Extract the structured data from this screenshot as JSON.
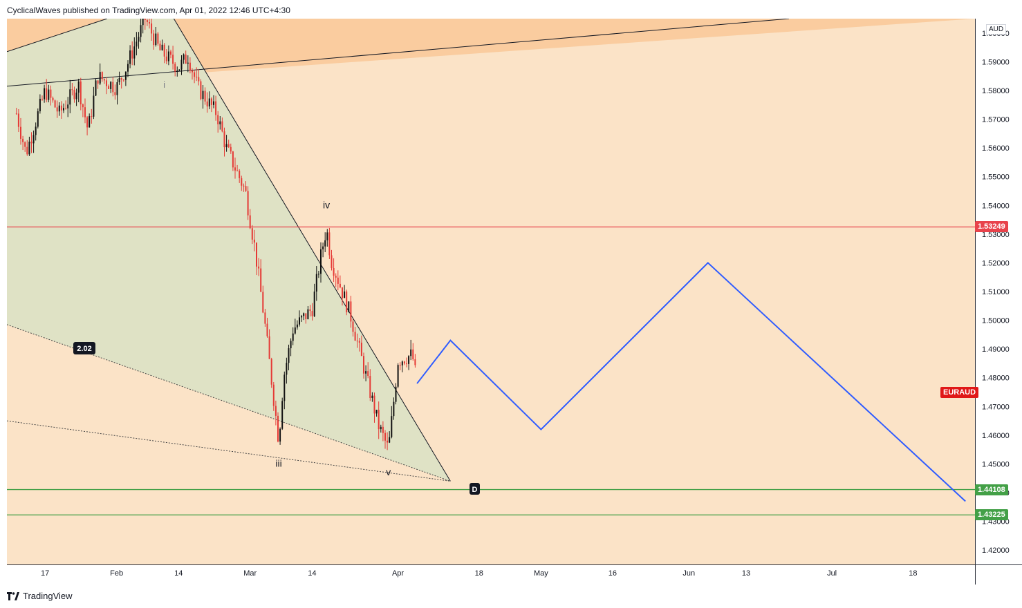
{
  "header": {
    "publisher_line": "CyclicalWaves published on TradingView.com, Apr 01, 2022 12:46 UTC+4:30"
  },
  "footer": {
    "brand": "TradingView"
  },
  "colors": {
    "background": "#fbe3c7",
    "bull": "#111111",
    "bear": "#e53935",
    "projection": "#2f5cff",
    "resistance": "#e8434c",
    "support": "#43a047"
  },
  "chart_data": {
    "type": "candlestick",
    "symbol": "EURAUD",
    "currency": "AUD",
    "ylim": [
      1.415,
      1.605
    ],
    "y_ticks": [
      "1.42000",
      "1.43000",
      "1.44000",
      "1.45000",
      "1.46000",
      "1.47000",
      "1.48000",
      "1.49000",
      "1.50000",
      "1.51000",
      "1.52000",
      "1.53000",
      "1.54000",
      "1.55000",
      "1.56000",
      "1.57000",
      "1.58000",
      "1.59000",
      "1.60000"
    ],
    "x_ticks": [
      "17",
      "Feb",
      "14",
      "Mar",
      "14",
      "Apr",
      "18",
      "May",
      "16",
      "Jun",
      "13",
      "Jul",
      "18"
    ],
    "price_path": [
      {
        "date": "2022-01-11",
        "price": 1.572
      },
      {
        "date": "2022-01-13",
        "price": 1.558
      },
      {
        "date": "2022-01-17",
        "price": 1.58
      },
      {
        "date": "2022-01-20",
        "price": 1.572
      },
      {
        "date": "2022-01-24",
        "price": 1.582
      },
      {
        "date": "2022-01-26",
        "price": 1.566
      },
      {
        "date": "2022-01-28",
        "price": 1.585
      },
      {
        "date": "2022-02-01",
        "price": 1.581
      },
      {
        "date": "2022-02-03",
        "price": 1.588
      },
      {
        "date": "2022-02-07",
        "price": 1.605
      },
      {
        "date": "2022-02-10",
        "price": 1.594
      },
      {
        "date": "2022-02-14",
        "price": 1.588
      },
      {
        "date": "2022-02-16",
        "price": 1.592
      },
      {
        "date": "2022-02-18",
        "price": 1.581
      },
      {
        "date": "2022-02-22",
        "price": 1.572
      },
      {
        "date": "2022-02-24",
        "price": 1.56
      },
      {
        "date": "2022-02-28",
        "price": 1.545
      },
      {
        "date": "2022-03-02",
        "price": 1.525
      },
      {
        "date": "2022-03-04",
        "price": 1.5
      },
      {
        "date": "2022-03-07",
        "price": 1.458
      },
      {
        "date": "2022-03-08",
        "price": 1.48
      },
      {
        "date": "2022-03-10",
        "price": 1.497
      },
      {
        "date": "2022-03-14",
        "price": 1.504
      },
      {
        "date": "2022-03-16",
        "price": 1.524
      },
      {
        "date": "2022-03-17",
        "price": 1.532
      },
      {
        "date": "2022-03-18",
        "price": 1.521
      },
      {
        "date": "2022-03-22",
        "price": 1.502
      },
      {
        "date": "2022-03-24",
        "price": 1.489
      },
      {
        "date": "2022-03-28",
        "price": 1.463
      },
      {
        "date": "2022-03-30",
        "price": 1.455
      },
      {
        "date": "2022-03-31",
        "price": 1.47
      },
      {
        "date": "2022-04-01",
        "price": 1.486
      },
      {
        "date": "2022-04-04",
        "price": 1.488
      },
      {
        "date": "2022-04-05",
        "price": 1.478
      }
    ],
    "projection": [
      {
        "date": "2022-04-05",
        "price": 1.478
      },
      {
        "date": "2022-04-12",
        "price": 1.493
      },
      {
        "date": "2022-05-01",
        "price": 1.462
      },
      {
        "date": "2022-06-05",
        "price": 1.52
      },
      {
        "date": "2022-07-29",
        "price": 1.437
      }
    ],
    "horizontal_levels": [
      {
        "price": 1.53249,
        "label": "1.53249",
        "color": "#e8434c"
      },
      {
        "price": 1.44108,
        "label": "1.44108",
        "color": "#43a047"
      },
      {
        "price": 1.43225,
        "label": "1.43225",
        "color": "#43a047"
      }
    ],
    "wave_labels": [
      {
        "text": "i",
        "date": "2022-02-11",
        "price": 1.581
      },
      {
        "text": "iv",
        "date": "2022-03-17",
        "price": 1.539
      },
      {
        "text": "iii",
        "date": "2022-03-07",
        "price": 1.449
      },
      {
        "text": "v",
        "date": "2022-03-30",
        "price": 1.446
      }
    ],
    "harmonic_ratio": "2.02",
    "point_label": "D",
    "symbol_label": "EURAUD"
  }
}
